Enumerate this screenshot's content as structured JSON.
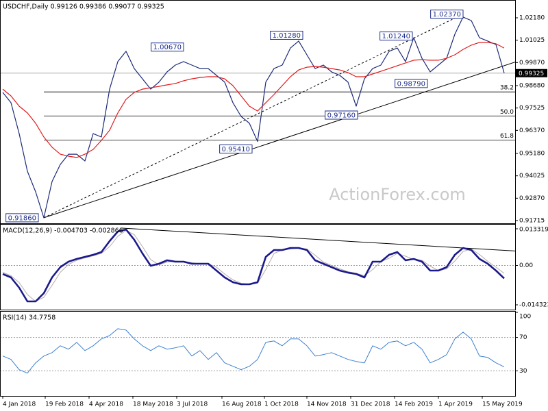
{
  "chart_data": [
    {
      "type": "line",
      "title": "USDCHF,Daily  0.99126 0.99386 0.99077 0.99325",
      "watermark": "ActionForex.com",
      "xlim": [
        0,
        372
      ],
      "x": [
        0,
        6,
        12,
        18,
        24,
        30,
        36,
        42,
        48,
        54,
        60,
        66,
        72,
        78,
        84,
        90,
        96,
        102,
        108,
        114,
        120,
        126,
        132,
        138,
        144,
        150,
        156,
        162,
        168,
        174,
        180,
        186,
        192,
        198,
        204,
        210,
        216,
        222,
        228,
        234,
        240,
        246,
        252,
        258,
        264,
        270,
        276,
        282,
        288,
        294,
        300,
        306,
        312,
        318,
        324,
        330,
        336,
        342,
        348,
        354,
        360,
        366
      ],
      "ylim": [
        0.91574,
        1.03099
      ],
      "yticks": [
        {
          "value": 1.0218,
          "label": "1.02180"
        },
        {
          "value": 1.01025,
          "label": "1.01025"
        },
        {
          "value": 0.9987,
          "label": "0.99870"
        },
        {
          "value": 0.9868,
          "label": "0.98680"
        },
        0.97525,
        {
          "value": 0.9637,
          "label": "0.96370"
        },
        {
          "value": 0.9518,
          "label": "0.95180"
        },
        0.94025,
        {
          "value": 0.9287,
          "label": "0.92870"
        },
        0.91715
      ],
      "series": [
        {
          "color": "#1c2a78",
          "width": 1.2,
          "values": [
            0.9833,
            0.978,
            0.962,
            0.9426,
            0.932,
            0.9186,
            0.9373,
            0.9461,
            0.9514,
            0.9514,
            0.9479,
            0.962,
            0.9603,
            0.985,
            0.9992,
            1.0045,
            0.9956,
            0.9903,
            0.985,
            0.9886,
            0.9939,
            0.9974,
            0.9992,
            0.9974,
            0.9956,
            0.9956,
            0.9921,
            0.9886,
            0.978,
            0.9709,
            0.9674,
            0.958,
            0.9886,
            0.9956,
            0.9974,
            1.0062,
            1.0098,
            1.0027,
            0.9956,
            0.9974,
            0.9939,
            0.9921,
            0.9886,
            0.9762,
            0.9903,
            0.9956,
            0.9974,
            1.0045,
            1.0062,
            0.9992,
            1.0115,
            1.0009,
            0.9939,
            0.9974,
            1.0009,
            1.0133,
            1.0222,
            1.0204,
            1.0115,
            1.0098,
            1.008,
            0.9933
          ]
        },
        {
          "color": "#e31a1c",
          "width": 1.2,
          "values": [
            0.985,
            0.9815,
            0.9762,
            0.9727,
            0.9674,
            0.9603,
            0.955,
            0.9514,
            0.9504,
            0.9497,
            0.9514,
            0.9539,
            0.9585,
            0.9638,
            0.9727,
            0.9797,
            0.9833,
            0.985,
            0.9857,
            0.9864,
            0.9872,
            0.9879,
            0.9893,
            0.9903,
            0.991,
            0.9914,
            0.9914,
            0.9903,
            0.9868,
            0.9815,
            0.9762,
            0.9737,
            0.978,
            0.9822,
            0.9868,
            0.9914,
            0.9949,
            0.9963,
            0.9967,
            0.9963,
            0.9956,
            0.9949,
            0.9935,
            0.9914,
            0.9914,
            0.9928,
            0.9942,
            0.9956,
            0.9971,
            0.9985,
            0.9999,
            1.0002,
            0.9999,
            0.9999,
            1.0009,
            1.0027,
            1.0055,
            1.0077,
            1.0091,
            1.0091,
            1.0084,
            1.0062
          ]
        }
      ],
      "annotations": [
        {
          "x": 26,
          "value": 0.9186,
          "label": "0.91860"
        },
        {
          "x": 132,
          "value": 1.0067,
          "label": "1.00670"
        },
        {
          "x": 219,
          "value": 1.0128,
          "label": "1.01280"
        },
        {
          "x": 299,
          "value": 1.0124,
          "label": "1.01240"
        },
        {
          "x": 336,
          "value": 1.0237,
          "label": "1.02370"
        },
        {
          "x": 310,
          "value": 0.9879,
          "label": "0.98790"
        },
        {
          "x": 259,
          "value": 0.9716,
          "label": "0.97160"
        },
        {
          "x": 182,
          "value": 0.9541,
          "label": "0.95410"
        }
      ],
      "levels": [
        {
          "x": 30,
          "value": 0.98355,
          "label": "38.2"
        },
        {
          "x": 30,
          "value": 0.97115,
          "label": "50.0"
        },
        {
          "x": 30,
          "value": 0.95875,
          "label": "61.8"
        }
      ],
      "trendlines": [
        {
          "x": [
            30,
            182
          ],
          "values": [
            0.9186,
            0.9541
          ],
          "dashed": false,
          "extend": true
        },
        {
          "x": [
            30,
            336
          ],
          "values": [
            0.9186,
            1.0237
          ],
          "dashed": true,
          "extend": false
        }
      ],
      "last": {
        "value": 0.99325,
        "label": "0.99325"
      }
    },
    {
      "type": "line",
      "title": "MACD(12,26,9) -0.004703 -0.002866",
      "xlim": [
        0,
        372
      ],
      "x": [
        0,
        6,
        12,
        18,
        24,
        30,
        36,
        42,
        48,
        54,
        60,
        66,
        72,
        78,
        84,
        90,
        96,
        102,
        108,
        114,
        120,
        126,
        132,
        138,
        144,
        150,
        156,
        162,
        168,
        174,
        180,
        186,
        192,
        198,
        204,
        210,
        216,
        222,
        228,
        234,
        240,
        246,
        252,
        258,
        264,
        270,
        276,
        282,
        288,
        294,
        300,
        306,
        312,
        318,
        324,
        330,
        336,
        342,
        348,
        354,
        360,
        366
      ],
      "ylim": [
        -0.016066,
        0.015062
      ],
      "yticks": [
        0.013319,
        {
          "value": 0,
          "label": "0.00"
        },
        -0.014323
      ],
      "hlines": [
        0
      ],
      "series": [
        {
          "color": "#b9a9a9",
          "width": 1,
          "values": [
            -0.0025,
            -0.00374,
            -0.00623,
            -0.01059,
            -0.01308,
            -0.01159,
            -0.00723,
            -0.00249,
            0.00038,
            0.00187,
            0.00274,
            0.00349,
            0.00436,
            0.00685,
            0.01059,
            0.01271,
            0.01121,
            0.00685,
            0.00212,
            0.00025,
            0.00125,
            0.00162,
            0.00137,
            0.001,
            0.00062,
            0.00062,
            -0.00063,
            -0.00312,
            -0.00523,
            -0.00648,
            -0.00685,
            -0.00648,
            -0.0015,
            0.00436,
            0.0056,
            0.00598,
            0.00635,
            0.00598,
            0.00374,
            0.00125,
            0,
            -0.00125,
            -0.00225,
            -0.00287,
            -0.00374,
            -0.0015,
            0.00137,
            0.00262,
            0.00436,
            0.00337,
            0.00212,
            0.00187,
            -0.00025,
            -0.00187,
            -0.00125,
            0.00162,
            0.00511,
            0.00598,
            0.00399,
            0.0015,
            -0.00063,
            -0.002866
          ]
        },
        {
          "color": "#1a1a8c",
          "width": 2.6,
          "values": [
            -0.00311,
            -0.00436,
            -0.00809,
            -0.01308,
            -0.01308,
            -0.01009,
            -0.00436,
            -0.00062,
            0.00137,
            0.00237,
            0.00311,
            0.00386,
            0.00486,
            0.00884,
            0.01233,
            0.01308,
            0.00934,
            0.00436,
            -0.00012,
            0.00062,
            0.00187,
            0.00137,
            0.00137,
            0.00062,
            0.00062,
            0.00062,
            -0.00187,
            -0.00436,
            -0.0061,
            -0.00685,
            -0.00685,
            -0.0061,
            0.00311,
            0.0056,
            0.0056,
            0.00635,
            0.00635,
            0.0056,
            0.00187,
            0.00062,
            -0.00062,
            -0.00187,
            -0.00262,
            -0.00311,
            -0.00436,
            0.00137,
            0.00137,
            0.00386,
            0.00486,
            0.00187,
            0.00237,
            0.00137,
            -0.00187,
            -0.00187,
            -0.00062,
            0.00386,
            0.00635,
            0.0056,
            0.00237,
            0.00062,
            -0.00187,
            -0.004703
          ]
        }
      ],
      "trendlines": [
        {
          "x": [
            86,
            336
          ],
          "values": [
            0.0136,
            0.00635
          ],
          "dashed": false,
          "extend": true
        }
      ]
    },
    {
      "type": "line",
      "title": "RSI(14) 34.7758",
      "xlim": [
        0,
        372
      ],
      "x": [
        0,
        6,
        12,
        18,
        24,
        30,
        36,
        42,
        48,
        54,
        60,
        66,
        72,
        78,
        84,
        90,
        96,
        102,
        108,
        114,
        120,
        126,
        132,
        138,
        144,
        150,
        156,
        162,
        168,
        174,
        180,
        186,
        192,
        198,
        204,
        210,
        216,
        222,
        228,
        234,
        240,
        246,
        252,
        258,
        264,
        270,
        276,
        282,
        288,
        294,
        300,
        306,
        312,
        318,
        324,
        330,
        336,
        342,
        348,
        354,
        360,
        366
      ],
      "ylim": [
        0,
        100
      ],
      "yticks": [
        100,
        70,
        30
      ],
      "hlines": [
        70,
        30
      ],
      "xticks": [
        {
          "value": 0,
          "label": "4 Jan 2018"
        },
        {
          "value": 31,
          "label": "19 Feb 2018"
        },
        {
          "value": 63,
          "label": "4 Apr 2018"
        },
        {
          "value": 95,
          "label": "18 May 2018"
        },
        {
          "value": 127,
          "label": "3 Jul 2018"
        },
        {
          "value": 160,
          "label": "16 Aug 2018"
        },
        {
          "value": 191,
          "label": "1 Oct 2018"
        },
        {
          "value": 222,
          "label": "14 Nov 2018"
        },
        {
          "value": 254,
          "label": "31 Dec 2018"
        },
        {
          "value": 286,
          "label": "14 Feb 2019"
        },
        {
          "value": 318,
          "label": "1 Apr 2019"
        },
        {
          "value": 350,
          "label": "15 May 2019"
        }
      ],
      "series": [
        {
          "color": "#3a7fd0",
          "width": 1,
          "values": [
            47.8,
            43.7,
            31.4,
            27.3,
            39.6,
            47.8,
            51.8,
            60.0,
            55.9,
            64.1,
            54.3,
            60.0,
            68.2,
            72.2,
            80.4,
            78.8,
            68.2,
            60.0,
            54.3,
            60.0,
            55.9,
            57.6,
            60.0,
            47.8,
            54.3,
            43.7,
            51.8,
            39.6,
            35.5,
            31.4,
            35.5,
            43.7,
            64.1,
            65.7,
            60.0,
            68.2,
            68.2,
            60.0,
            47.8,
            49.4,
            51.8,
            47.8,
            43.7,
            41.2,
            39.6,
            60.0,
            55.9,
            64.1,
            65.7,
            60.0,
            64.1,
            55.9,
            39.6,
            43.7,
            49.4,
            68.2,
            76.3,
            68.2,
            47.8,
            46.1,
            39.6,
            34.78
          ]
        }
      ]
    }
  ]
}
